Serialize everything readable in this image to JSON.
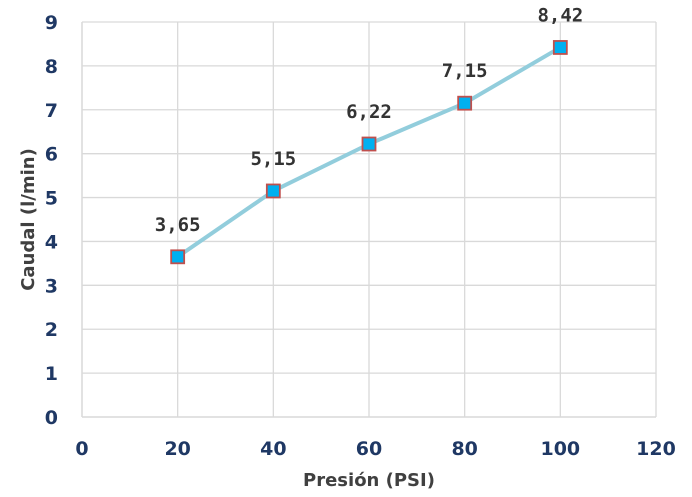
{
  "chart_data": {
    "type": "line",
    "xlabel": "Presión (PSI)",
    "ylabel": "Caudal (l/min)",
    "xlim": [
      0,
      120
    ],
    "ylim": [
      0,
      9
    ],
    "x_ticks": [
      "0",
      "20",
      "40",
      "60",
      "80",
      "100",
      "120"
    ],
    "y_ticks": [
      "0",
      "1",
      "2",
      "3",
      "4",
      "5",
      "6",
      "7",
      "8",
      "9"
    ],
    "grid": true,
    "legend": "none",
    "series": [
      {
        "x": [
          20,
          40,
          60,
          80,
          100
        ],
        "y": [
          3.65,
          5.15,
          6.22,
          7.15,
          8.42
        ],
        "labels": [
          "3,65",
          "5,15",
          "6,22",
          "7,15",
          "8,42"
        ]
      }
    ],
    "colors": {
      "line": "#92cddc",
      "marker_fill": "#00b0f0",
      "marker_border": "#c0504d",
      "tick_text": "#1f3864",
      "axis_title_text": "#404040",
      "grid": "#d9d9d9"
    }
  }
}
